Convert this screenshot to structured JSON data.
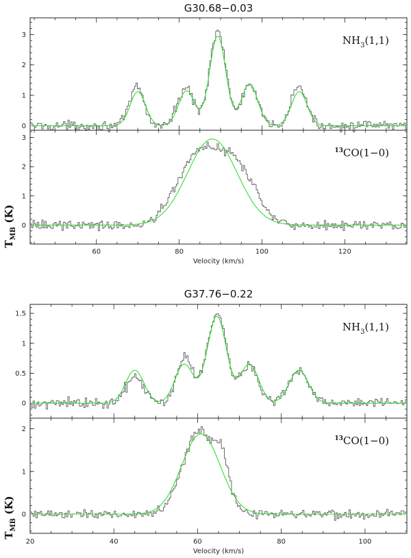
{
  "chart_data": [
    {
      "type": "line",
      "source": "G30.68-0.03",
      "title": "G30.68−0.03",
      "xlabel": "Velocity (km/s)",
      "xlim": [
        44,
        135
      ],
      "x_ticks": [
        60,
        80,
        100,
        120
      ],
      "panels": [
        {
          "line_label": {
            "main": "NH",
            "sub": "3",
            "tail": "(1,1)",
            "sup": ""
          },
          "ylabel": "",
          "ylim": [
            -0.15,
            3.55
          ],
          "y_ticks": [
            0,
            1,
            2,
            3
          ],
          "baseline": 0,
          "series": [
            {
              "name": "observed",
              "color": "#5a5a5a",
              "components": [
                {
                  "center": 69.8,
                  "amp": 1.28,
                  "sigma": 1.7
                },
                {
                  "center": 81.6,
                  "amp": 1.25,
                  "sigma": 1.9
                },
                {
                  "center": 89.3,
                  "amp": 3.15,
                  "sigma": 1.95
                },
                {
                  "center": 97.0,
                  "amp": 1.35,
                  "sigma": 1.9
                },
                {
                  "center": 108.9,
                  "amp": 1.32,
                  "sigma": 1.8
                }
              ]
            },
            {
              "name": "fit",
              "color": "#33dd33",
              "components": [
                {
                  "center": 70.0,
                  "amp": 1.12,
                  "sigma": 1.85
                },
                {
                  "center": 81.8,
                  "amp": 1.15,
                  "sigma": 1.95
                },
                {
                  "center": 89.3,
                  "amp": 2.95,
                  "sigma": 1.95
                },
                {
                  "center": 97.0,
                  "amp": 1.38,
                  "sigma": 1.95
                },
                {
                  "center": 109.0,
                  "amp": 1.12,
                  "sigma": 1.9
                }
              ]
            }
          ]
        },
        {
          "line_label": {
            "main": "CO(1−0)",
            "sub": "",
            "tail": "",
            "sup": "13"
          },
          "ylabel": "T",
          "ylabel_sub": "MB",
          "ylabel_unit": "(K)",
          "ylim": [
            -0.65,
            3.25
          ],
          "y_ticks": [
            0,
            1,
            2,
            3
          ],
          "baseline": 0,
          "series": [
            {
              "name": "observed",
              "color": "#5a5a5a",
              "components": [
                {
                  "center": 84.5,
                  "amp": 2.4,
                  "sigma": 5.0
                },
                {
                  "center": 94.0,
                  "amp": 1.9,
                  "sigma": 4.5
                }
              ]
            },
            {
              "name": "fit",
              "color": "#33dd33",
              "components": [
                {
                  "center": 88.0,
                  "amp": 2.95,
                  "sigma": 6.0
                }
              ]
            }
          ]
        }
      ]
    },
    {
      "type": "line",
      "source": "G37.76-0.22",
      "title": "G37.76−0.22",
      "xlabel": "Velocity (km/s)",
      "xlim": [
        20,
        110
      ],
      "x_ticks": [
        20,
        40,
        60,
        80,
        100
      ],
      "panels": [
        {
          "line_label": {
            "main": "NH",
            "sub": "3",
            "tail": "(1,1)",
            "sup": ""
          },
          "ylabel": "",
          "ylim": [
            -0.25,
            1.65
          ],
          "y_ticks": [
            0,
            0.5,
            1,
            1.5
          ],
          "baseline": 0,
          "series": [
            {
              "name": "observed",
              "color": "#5a5a5a",
              "components": [
                {
                  "center": 45.0,
                  "amp": 0.42,
                  "sigma": 2.2
                },
                {
                  "center": 57.0,
                  "amp": 0.78,
                  "sigma": 2.0
                },
                {
                  "center": 64.6,
                  "amp": 1.52,
                  "sigma": 2.3
                },
                {
                  "center": 72.3,
                  "amp": 0.62,
                  "sigma": 2.2
                },
                {
                  "center": 84.2,
                  "amp": 0.55,
                  "sigma": 2.3
                }
              ]
            },
            {
              "name": "fit",
              "color": "#33dd33",
              "components": [
                {
                  "center": 45.0,
                  "amp": 0.55,
                  "sigma": 2.2
                },
                {
                  "center": 56.8,
                  "amp": 0.65,
                  "sigma": 2.2
                },
                {
                  "center": 64.6,
                  "amp": 1.45,
                  "sigma": 2.3
                },
                {
                  "center": 72.4,
                  "amp": 0.65,
                  "sigma": 2.2
                },
                {
                  "center": 84.2,
                  "amp": 0.55,
                  "sigma": 2.3
                }
              ]
            }
          ]
        },
        {
          "line_label": {
            "main": "CO(1−0)",
            "sub": "",
            "tail": "",
            "sup": "13"
          },
          "ylabel": "T",
          "ylabel_sub": "MB",
          "ylabel_unit": "(K)",
          "ylim": [
            -0.45,
            2.25
          ],
          "y_ticks": [
            0,
            1,
            2
          ],
          "baseline": 0,
          "series": [
            {
              "name": "observed",
              "color": "#5a5a5a",
              "components": [
                {
                  "center": 60.5,
                  "amp": 1.95,
                  "sigma": 4.0
                },
                {
                  "center": 66.0,
                  "amp": 0.8,
                  "sigma": 1.6
                }
              ]
            },
            {
              "name": "fit",
              "color": "#33dd33",
              "components": [
                {
                  "center": 60.8,
                  "amp": 1.88,
                  "sigma": 4.6
                }
              ]
            }
          ]
        }
      ]
    }
  ]
}
